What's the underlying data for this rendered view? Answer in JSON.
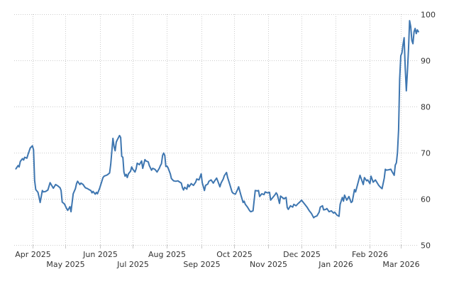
{
  "chart": {
    "background": "#ffffff",
    "line_color": "#3e76b0",
    "grid_color": "#cccccc",
    "tick_color": "#c8c8c8",
    "label_color": "#333333",
    "y_axis": {
      "side": "right",
      "ticks": [
        50,
        60,
        70,
        80,
        90,
        100
      ]
    },
    "x_axis": {
      "ticks": [
        {
          "label": "Apr 2025",
          "date": "2025-04-01",
          "row": 1
        },
        {
          "label": "May 2025",
          "date": "2025-05-01",
          "row": 2
        },
        {
          "label": "Jun 2025",
          "date": "2025-06-01",
          "row": 1
        },
        {
          "label": "Jul 2025",
          "date": "2025-07-01",
          "row": 2
        },
        {
          "label": "Aug 2025",
          "date": "2025-08-01",
          "row": 1
        },
        {
          "label": "Sep 2025",
          "date": "2025-09-01",
          "row": 2
        },
        {
          "label": "Oct 2025",
          "date": "2025-10-01",
          "row": 1
        },
        {
          "label": "Nov 2025",
          "date": "2025-11-01",
          "row": 2
        },
        {
          "label": "Dec 2025",
          "date": "2025-12-01",
          "row": 1
        },
        {
          "label": "Jan 2026",
          "date": "2026-01-01",
          "row": 2
        },
        {
          "label": "Feb 2026",
          "date": "2026-02-01",
          "row": 1
        },
        {
          "label": "Mar 2026",
          "date": "2026-03-01",
          "row": 2
        }
      ]
    }
  },
  "chart_data": {
    "type": "line",
    "title": "",
    "xlabel": "",
    "ylabel": "",
    "legend": "none",
    "grid": "dotted",
    "ylim": [
      50,
      100
    ],
    "x_range": [
      "2025-03-16",
      "2026-03-17"
    ],
    "points": [
      [
        "2025-03-17",
        66.5
      ],
      [
        "2025-03-19",
        67.2
      ],
      [
        "2025-03-20",
        66.9
      ],
      [
        "2025-03-21",
        68.1
      ],
      [
        "2025-03-23",
        68.7
      ],
      [
        "2025-03-24",
        68.4
      ],
      [
        "2025-03-25",
        69.0
      ],
      [
        "2025-03-27",
        68.8
      ],
      [
        "2025-03-28",
        69.6
      ],
      [
        "2025-03-30",
        71.0
      ],
      [
        "2025-04-01",
        71.5
      ],
      [
        "2025-04-02",
        70.6
      ],
      [
        "2025-04-03",
        64.0
      ],
      [
        "2025-04-04",
        62.0
      ],
      [
        "2025-04-06",
        61.4
      ],
      [
        "2025-04-07",
        60.4
      ],
      [
        "2025-04-08",
        59.2
      ],
      [
        "2025-04-10",
        61.8
      ],
      [
        "2025-04-11",
        61.5
      ],
      [
        "2025-04-13",
        61.6
      ],
      [
        "2025-04-15",
        61.9
      ],
      [
        "2025-04-17",
        63.5
      ],
      [
        "2025-04-18",
        63.1
      ],
      [
        "2025-04-20",
        62.3
      ],
      [
        "2025-04-22",
        63.1
      ],
      [
        "2025-04-24",
        62.8
      ],
      [
        "2025-04-26",
        62.4
      ],
      [
        "2025-04-27",
        61.8
      ],
      [
        "2025-04-28",
        59.3
      ],
      [
        "2025-04-30",
        58.9
      ],
      [
        "2025-05-02",
        57.9
      ],
      [
        "2025-05-03",
        57.5
      ],
      [
        "2025-05-05",
        58.3
      ],
      [
        "2025-05-06",
        57.2
      ],
      [
        "2025-05-08",
        61.1
      ],
      [
        "2025-05-10",
        62.2
      ],
      [
        "2025-05-11",
        63.3
      ],
      [
        "2025-05-12",
        63.8
      ],
      [
        "2025-05-14",
        63.1
      ],
      [
        "2025-05-15",
        63.4
      ],
      [
        "2025-05-17",
        63.1
      ],
      [
        "2025-05-18",
        62.7
      ],
      [
        "2025-05-19",
        62.4
      ],
      [
        "2025-05-21",
        62.2
      ],
      [
        "2025-05-23",
        61.9
      ],
      [
        "2025-05-24",
        61.8
      ],
      [
        "2025-05-25",
        61.3
      ],
      [
        "2025-05-26",
        61.6
      ],
      [
        "2025-05-28",
        61.0
      ],
      [
        "2025-05-29",
        61.4
      ],
      [
        "2025-05-30",
        61.1
      ],
      [
        "2025-06-01",
        62.3
      ],
      [
        "2025-06-02",
        63.1
      ],
      [
        "2025-06-04",
        64.6
      ],
      [
        "2025-06-05",
        64.9
      ],
      [
        "2025-06-07",
        65.1
      ],
      [
        "2025-06-08",
        65.2
      ],
      [
        "2025-06-10",
        65.6
      ],
      [
        "2025-06-11",
        67.5
      ],
      [
        "2025-06-12",
        70.2
      ],
      [
        "2025-06-13",
        73.1
      ],
      [
        "2025-06-14",
        71.3
      ],
      [
        "2025-06-15",
        70.4
      ],
      [
        "2025-06-16",
        72.3
      ],
      [
        "2025-06-17",
        72.8
      ],
      [
        "2025-06-19",
        73.7
      ],
      [
        "2025-06-20",
        73.3
      ],
      [
        "2025-06-21",
        69.2
      ],
      [
        "2025-06-22",
        69.0
      ],
      [
        "2025-06-23",
        65.8
      ],
      [
        "2025-06-24",
        64.9
      ],
      [
        "2025-06-25",
        65.3
      ],
      [
        "2025-06-26",
        64.6
      ],
      [
        "2025-06-27",
        65.4
      ],
      [
        "2025-06-29",
        66.0
      ],
      [
        "2025-06-30",
        66.9
      ],
      [
        "2025-07-01",
        66.4
      ],
      [
        "2025-07-03",
        65.8
      ],
      [
        "2025-07-04",
        66.5
      ],
      [
        "2025-07-05",
        67.7
      ],
      [
        "2025-07-07",
        67.4
      ],
      [
        "2025-07-09",
        68.2
      ],
      [
        "2025-07-10",
        66.6
      ],
      [
        "2025-07-12",
        68.5
      ],
      [
        "2025-07-13",
        68.2
      ],
      [
        "2025-07-15",
        68.0
      ],
      [
        "2025-07-16",
        67.2
      ],
      [
        "2025-07-18",
        66.2
      ],
      [
        "2025-07-19",
        66.6
      ],
      [
        "2025-07-21",
        66.4
      ],
      [
        "2025-07-23",
        65.8
      ],
      [
        "2025-07-25",
        66.6
      ],
      [
        "2025-07-26",
        67.2
      ],
      [
        "2025-07-27",
        67.6
      ],
      [
        "2025-07-28",
        69.4
      ],
      [
        "2025-07-29",
        69.9
      ],
      [
        "2025-07-30",
        69.4
      ],
      [
        "2025-07-31",
        67.0
      ],
      [
        "2025-08-01",
        67.1
      ],
      [
        "2025-08-02",
        66.7
      ],
      [
        "2025-08-04",
        65.4
      ],
      [
        "2025-08-05",
        64.4
      ],
      [
        "2025-08-07",
        63.9
      ],
      [
        "2025-08-09",
        63.8
      ],
      [
        "2025-08-11",
        63.9
      ],
      [
        "2025-08-12",
        63.7
      ],
      [
        "2025-08-14",
        63.4
      ],
      [
        "2025-08-15",
        62.4
      ],
      [
        "2025-08-16",
        61.9
      ],
      [
        "2025-08-17",
        62.5
      ],
      [
        "2025-08-19",
        62.1
      ],
      [
        "2025-08-20",
        63.1
      ],
      [
        "2025-08-21",
        62.6
      ],
      [
        "2025-08-23",
        63.3
      ],
      [
        "2025-08-25",
        62.9
      ],
      [
        "2025-08-27",
        63.6
      ],
      [
        "2025-08-28",
        64.3
      ],
      [
        "2025-08-30",
        64.1
      ],
      [
        "2025-09-01",
        65.4
      ],
      [
        "2025-09-02",
        63.5
      ],
      [
        "2025-09-04",
        61.8
      ],
      [
        "2025-09-05",
        62.9
      ],
      [
        "2025-09-07",
        63.2
      ],
      [
        "2025-09-08",
        63.8
      ],
      [
        "2025-09-10",
        64.1
      ],
      [
        "2025-09-12",
        63.4
      ],
      [
        "2025-09-13",
        63.8
      ],
      [
        "2025-09-15",
        64.5
      ],
      [
        "2025-09-16",
        63.9
      ],
      [
        "2025-09-18",
        62.6
      ],
      [
        "2025-09-19",
        63.4
      ],
      [
        "2025-09-21",
        64.3
      ],
      [
        "2025-09-22",
        65.0
      ],
      [
        "2025-09-24",
        65.7
      ],
      [
        "2025-09-25",
        64.6
      ],
      [
        "2025-09-27",
        63.1
      ],
      [
        "2025-09-29",
        61.5
      ],
      [
        "2025-09-30",
        61.2
      ],
      [
        "2025-10-02",
        61.0
      ],
      [
        "2025-10-04",
        62.0
      ],
      [
        "2025-10-05",
        62.6
      ],
      [
        "2025-10-07",
        60.8
      ],
      [
        "2025-10-09",
        59.2
      ],
      [
        "2025-10-10",
        59.5
      ],
      [
        "2025-10-11",
        58.8
      ],
      [
        "2025-10-13",
        58.2
      ],
      [
        "2025-10-15",
        57.4
      ],
      [
        "2025-10-16",
        57.2
      ],
      [
        "2025-10-18",
        57.4
      ],
      [
        "2025-10-20",
        61.8
      ],
      [
        "2025-10-22",
        61.7
      ],
      [
        "2025-10-23",
        61.8
      ],
      [
        "2025-10-24",
        60.5
      ],
      [
        "2025-10-26",
        61.1
      ],
      [
        "2025-10-28",
        60.9
      ],
      [
        "2025-10-29",
        61.5
      ],
      [
        "2025-10-31",
        61.3
      ],
      [
        "2025-11-02",
        61.4
      ],
      [
        "2025-11-03",
        59.7
      ],
      [
        "2025-11-05",
        60.3
      ],
      [
        "2025-11-07",
        60.9
      ],
      [
        "2025-11-08",
        61.3
      ],
      [
        "2025-11-09",
        60.9
      ],
      [
        "2025-11-11",
        59.0
      ],
      [
        "2025-11-12",
        60.6
      ],
      [
        "2025-11-14",
        60.2
      ],
      [
        "2025-11-15",
        60.0
      ],
      [
        "2025-11-17",
        60.3
      ],
      [
        "2025-11-18",
        58.1
      ],
      [
        "2025-11-19",
        57.7
      ],
      [
        "2025-11-21",
        58.5
      ],
      [
        "2025-11-23",
        58.2
      ],
      [
        "2025-11-24",
        58.8
      ],
      [
        "2025-11-26",
        58.5
      ],
      [
        "2025-11-28",
        59.0
      ],
      [
        "2025-11-29",
        59.2
      ],
      [
        "2025-12-01",
        59.7
      ],
      [
        "2025-12-02",
        59.4
      ],
      [
        "2025-12-04",
        58.8
      ],
      [
        "2025-12-06",
        58.2
      ],
      [
        "2025-12-07",
        57.8
      ],
      [
        "2025-12-08",
        57.4
      ],
      [
        "2025-12-10",
        56.8
      ],
      [
        "2025-12-12",
        55.9
      ],
      [
        "2025-12-13",
        56.1
      ],
      [
        "2025-12-15",
        56.3
      ],
      [
        "2025-12-17",
        57.1
      ],
      [
        "2025-12-18",
        58.2
      ],
      [
        "2025-12-20",
        58.5
      ],
      [
        "2025-12-21",
        57.6
      ],
      [
        "2025-12-23",
        57.7
      ],
      [
        "2025-12-24",
        57.9
      ],
      [
        "2025-12-26",
        57.2
      ],
      [
        "2025-12-28",
        57.4
      ],
      [
        "2025-12-30",
        56.9
      ],
      [
        "2025-12-31",
        57.1
      ],
      [
        "2026-01-02",
        56.5
      ],
      [
        "2026-01-04",
        56.2
      ],
      [
        "2026-01-05",
        58.8
      ],
      [
        "2026-01-07",
        60.3
      ],
      [
        "2026-01-08",
        59.5
      ],
      [
        "2026-01-09",
        60.8
      ],
      [
        "2026-01-11",
        59.7
      ],
      [
        "2026-01-13",
        60.5
      ],
      [
        "2026-01-15",
        59.2
      ],
      [
        "2026-01-16",
        59.4
      ],
      [
        "2026-01-18",
        62.0
      ],
      [
        "2026-01-19",
        61.5
      ],
      [
        "2026-01-21",
        63.3
      ],
      [
        "2026-01-23",
        65.1
      ],
      [
        "2026-01-26",
        63.1
      ],
      [
        "2026-01-27",
        64.6
      ],
      [
        "2026-01-29",
        63.9
      ],
      [
        "2026-01-30",
        64.1
      ],
      [
        "2026-02-01",
        63.3
      ],
      [
        "2026-02-02",
        64.9
      ],
      [
        "2026-02-04",
        63.6
      ],
      [
        "2026-02-06",
        64.1
      ],
      [
        "2026-02-08",
        63.3
      ],
      [
        "2026-02-09",
        62.9
      ],
      [
        "2026-02-11",
        62.4
      ],
      [
        "2026-02-12",
        62.2
      ],
      [
        "2026-02-14",
        64.5
      ],
      [
        "2026-02-15",
        66.4
      ],
      [
        "2026-02-16",
        66.2
      ],
      [
        "2026-02-18",
        66.3
      ],
      [
        "2026-02-20",
        66.4
      ],
      [
        "2026-02-21",
        65.9
      ],
      [
        "2026-02-23",
        65.1
      ],
      [
        "2026-02-24",
        67.3
      ],
      [
        "2026-02-25",
        67.8
      ],
      [
        "2026-02-26",
        70.0
      ],
      [
        "2026-02-27",
        75.0
      ],
      [
        "2026-02-28",
        86.0
      ],
      [
        "2026-03-01",
        91.0
      ],
      [
        "2026-03-02",
        91.6
      ],
      [
        "2026-03-03",
        93.4
      ],
      [
        "2026-03-04",
        94.9
      ],
      [
        "2026-03-05",
        88.5
      ],
      [
        "2026-03-06",
        83.4
      ],
      [
        "2026-03-07",
        87.5
      ],
      [
        "2026-03-08",
        92.5
      ],
      [
        "2026-03-09",
        98.6
      ],
      [
        "2026-03-10",
        97.3
      ],
      [
        "2026-03-11",
        94.3
      ],
      [
        "2026-03-12",
        93.6
      ],
      [
        "2026-03-13",
        96.2
      ],
      [
        "2026-03-14",
        96.9
      ],
      [
        "2026-03-15",
        95.8
      ],
      [
        "2026-03-16",
        96.6
      ],
      [
        "2026-03-17",
        96.2
      ]
    ]
  }
}
